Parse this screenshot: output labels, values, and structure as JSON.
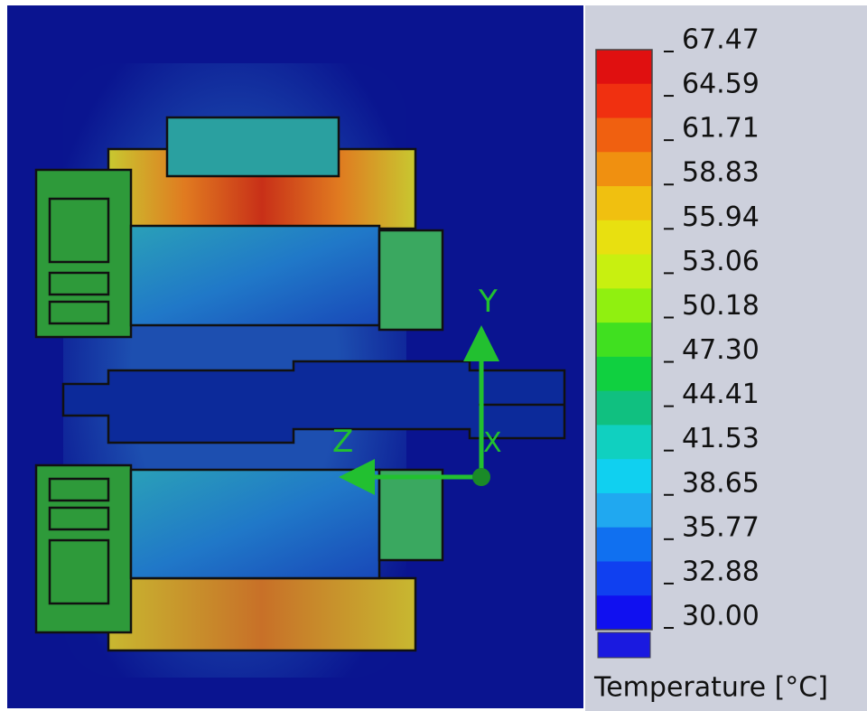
{
  "viewport": {
    "axes": {
      "y": "Y",
      "z": "Z",
      "x": "X"
    }
  },
  "legend": {
    "ticks": [
      "67.47",
      "64.59",
      "61.71",
      "58.83",
      "55.94",
      "53.06",
      "50.18",
      "47.30",
      "44.41",
      "41.53",
      "38.65",
      "35.77",
      "32.88",
      "30.00"
    ],
    "title": "Temperature [°C]"
  }
}
